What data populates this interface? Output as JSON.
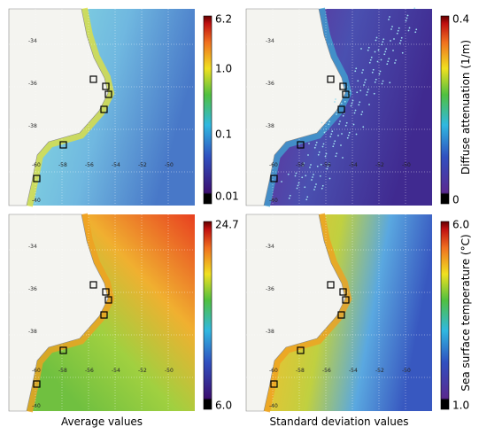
{
  "captions": [
    "Average values",
    "Standard deviation values"
  ],
  "rows": [
    {
      "colorbar_label": "Diffuse attenuation (1/m)",
      "average_ticks": [
        "6.2",
        "1.0",
        "0.1",
        "0.01"
      ],
      "std_ticks": [
        "0.4",
        "0"
      ]
    },
    {
      "colorbar_label": "Sea surface temperature (°C)",
      "average_ticks": [
        "24.7",
        "6.0"
      ],
      "std_ticks": [
        "6.0",
        "1.0"
      ]
    }
  ],
  "map_labels": {
    "lat": [
      "-34",
      "-36",
      "-38",
      "-40"
    ],
    "lon": [
      "-60",
      "-58",
      "-56",
      "-54",
      "-52",
      "-50"
    ]
  }
}
